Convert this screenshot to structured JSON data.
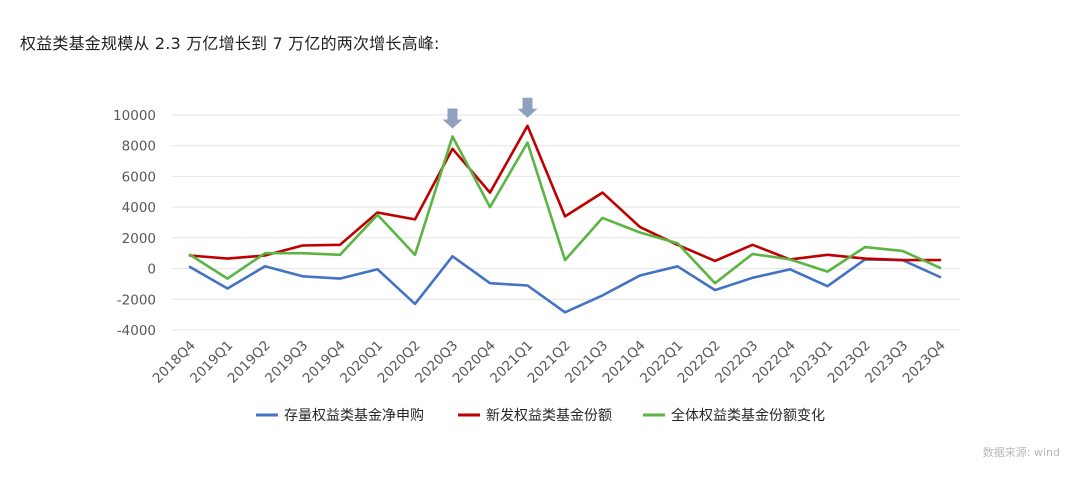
{
  "heading": "权益类基金规模从 2.3 万亿增长到 7 万亿的两次增长高峰:",
  "source": "数据来源: wind",
  "chart_data": {
    "type": "line",
    "categories": [
      "2018Q4",
      "2019Q1",
      "2019Q2",
      "2019Q3",
      "2019Q4",
      "2020Q1",
      "2020Q2",
      "2020Q3",
      "2020Q4",
      "2021Q1",
      "2021Q2",
      "2021Q3",
      "2021Q4",
      "2022Q1",
      "2022Q2",
      "2022Q3",
      "2022Q4",
      "2023Q1",
      "2023Q2",
      "2023Q3",
      "2023Q4"
    ],
    "ylim": [
      -4000,
      10000
    ],
    "yticks": [
      -4000,
      -2000,
      0,
      2000,
      4000,
      6000,
      8000,
      10000
    ],
    "grid": true,
    "legend": "bottom",
    "series": [
      {
        "name": "存量权益类基金净申购",
        "color": "#4472c4",
        "values": [
          100,
          -1300,
          150,
          -500,
          -650,
          -50,
          -2300,
          800,
          -950,
          -1100,
          -2850,
          -1750,
          -450,
          150,
          -1400,
          -600,
          -50,
          -1150,
          600,
          550,
          -550
        ]
      },
      {
        "name": "新发权益类基金份额",
        "color": "#c00000",
        "values": [
          850,
          650,
          850,
          1500,
          1550,
          3650,
          3200,
          7800,
          4950,
          9300,
          3400,
          4950,
          2700,
          1550,
          500,
          1550,
          600,
          900,
          650,
          550,
          550
        ]
      },
      {
        "name": "全体权益类基金份额变化",
        "color": "#5bb443",
        "values": [
          900,
          -650,
          1000,
          1000,
          900,
          3500,
          900,
          8600,
          4000,
          8200,
          550,
          3300,
          2350,
          1650,
          -950,
          950,
          600,
          -200,
          1400,
          1150,
          50
        ]
      }
    ],
    "markers": [
      {
        "category": "2020Q3",
        "shape": "down-arrow"
      },
      {
        "category": "2021Q1",
        "shape": "down-arrow"
      }
    ]
  }
}
